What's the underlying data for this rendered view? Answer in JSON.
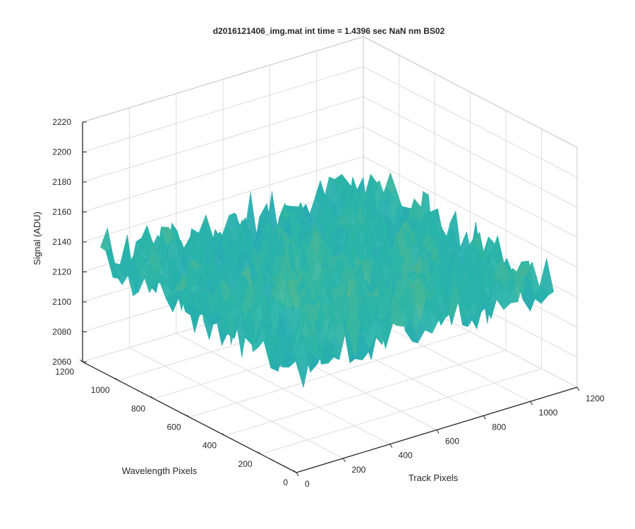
{
  "chart_data": {
    "type": "surface",
    "title": "d2016121406_img.mat int time = 1.4396 sec  NaN nm BS02",
    "xlabel": "Track Pixels",
    "ylabel": "Wavelength Pixels",
    "zlabel": "Signal (ADU)",
    "xlim": [
      0,
      1200
    ],
    "ylim": [
      0,
      1200
    ],
    "zlim": [
      2060,
      2220
    ],
    "x_ticks": [
      "0",
      "200",
      "400",
      "600",
      "800",
      "1000",
      "1200"
    ],
    "y_ticks": [
      "0",
      "200",
      "400",
      "600",
      "800",
      "1000",
      "1200"
    ],
    "z_ticks": [
      "2060",
      "2080",
      "2100",
      "2120",
      "2140",
      "2160",
      "2180",
      "2200",
      "2220"
    ],
    "grid": true,
    "colormap": "parula",
    "surface": {
      "x_extent": [
        0,
        1100
      ],
      "y_extent": [
        0,
        1100
      ],
      "mean_signal": 2130,
      "noise_range": [
        2080,
        2195
      ],
      "colors": {
        "low": "#1f8fd0",
        "mid": "#2ab5a8",
        "high": "#e6be3c"
      }
    }
  }
}
